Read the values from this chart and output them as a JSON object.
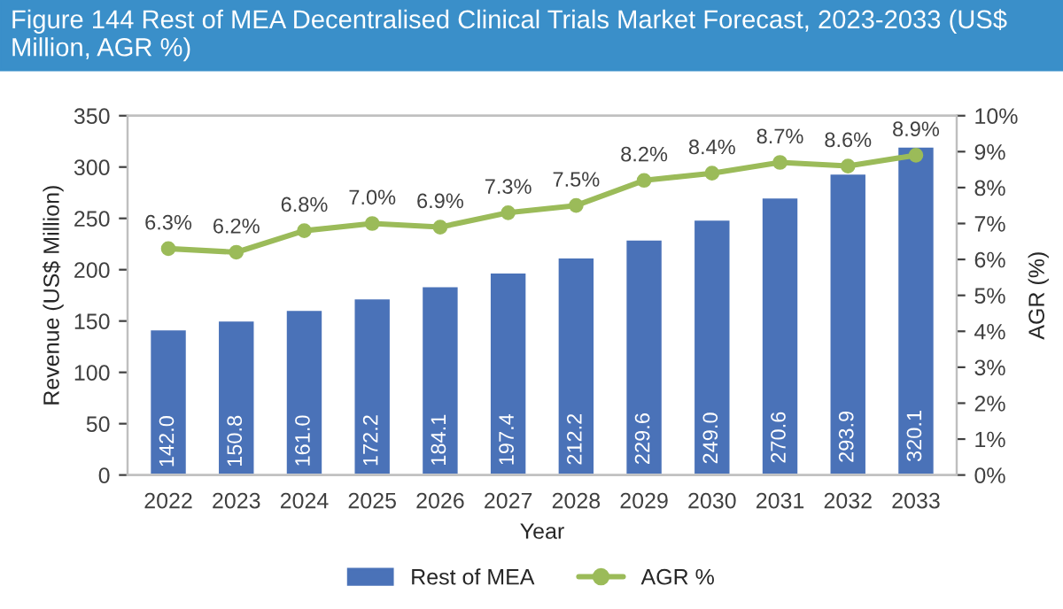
{
  "chart_data": {
    "type": "bar",
    "title": "Figure 144 Rest of MEA Decentralised Clinical Trials Market Forecast, 2023-2033 (US$ Million, AGR %)",
    "xlabel": "Year",
    "ylabel": "Revenue (US$ Million)",
    "y2label": "AGR (%)",
    "categories": [
      "2022",
      "2023",
      "2024",
      "2025",
      "2026",
      "2027",
      "2028",
      "2029",
      "2030",
      "2031",
      "2032",
      "2033"
    ],
    "series": [
      {
        "name": "Rest of MEA",
        "color": "#4a72b8",
        "values": [
          142.0,
          150.8,
          161.0,
          172.2,
          184.1,
          197.4,
          212.2,
          229.6,
          249.0,
          270.6,
          293.9,
          320.1
        ],
        "value_labels": [
          "142.0",
          "150.8",
          "161.0",
          "172.2",
          "184.1",
          "197.4",
          "212.2",
          "229.6",
          "249.0",
          "270.6",
          "293.9",
          "320.1"
        ]
      },
      {
        "name": "AGR %",
        "type": "line",
        "axis": "y2",
        "color": "#9bbb59",
        "marker": "circle",
        "values": [
          6.3,
          6.2,
          6.8,
          7.0,
          6.9,
          7.3,
          7.5,
          8.2,
          8.4,
          8.7,
          8.6,
          8.9
        ],
        "value_labels": [
          "6.3%",
          "6.2%",
          "6.8%",
          "7.0%",
          "6.9%",
          "7.3%",
          "7.5%",
          "8.2%",
          "8.4%",
          "8.7%",
          "8.6%",
          "8.9%"
        ]
      }
    ],
    "ylim": [
      0,
      350
    ],
    "yticks": [
      0,
      50,
      100,
      150,
      200,
      250,
      300,
      350
    ],
    "y2lim": [
      0,
      10
    ],
    "y2ticks": [
      {
        "value": 0,
        "label": "0%"
      },
      {
        "value": 1,
        "label": "1%"
      },
      {
        "value": 2,
        "label": "2%"
      },
      {
        "value": 3,
        "label": "3%"
      },
      {
        "value": 4,
        "label": "4%"
      },
      {
        "value": 5,
        "label": "5%"
      },
      {
        "value": 6,
        "label": "6%"
      },
      {
        "value": 7,
        "label": "7%"
      },
      {
        "value": 8,
        "label": "8%"
      },
      {
        "value": 9,
        "label": "9%"
      },
      {
        "value": 10,
        "label": "10%"
      }
    ],
    "grid": false,
    "legend": "bottom"
  }
}
